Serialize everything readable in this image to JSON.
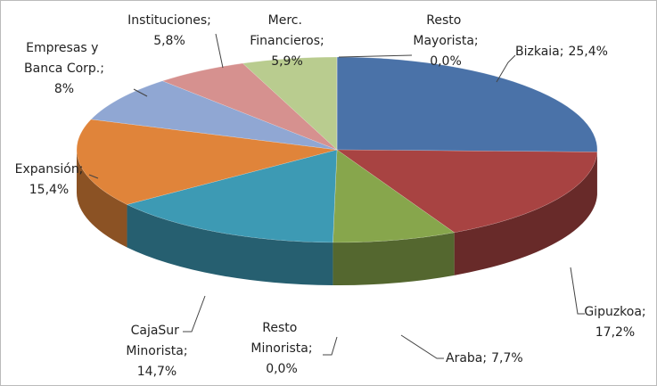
{
  "chart_data": {
    "type": "pie3d",
    "categories": [
      "Bizkaia;",
      "Gipuzkoa;",
      "Araba;",
      "Resto Minorista;",
      "CajaSur Minorista;",
      "Expansión;",
      "Empresas y Banca Corp.;",
      "Instituciones;",
      "Merc. Financieros;",
      "Resto Mayorista;"
    ],
    "values": [
      25.4,
      17.2,
      7.7,
      0.0,
      14.7,
      15.4,
      8,
      5.8,
      5.9,
      0.0
    ],
    "value_labels": [
      "25,4%",
      "17,2%",
      "7,7%",
      "0,0%",
      "14,7%",
      "15,4%",
      "8%",
      "5,8%",
      "5,9%",
      "0,0%"
    ],
    "colors": [
      "#4a72a8",
      "#a84342",
      "#87a64c",
      "#6a4f8f",
      "#3d9ab4",
      "#e0843a",
      "#90a7d3",
      "#d6918f",
      "#b9cc8f",
      "#7f6aa0"
    ]
  }
}
